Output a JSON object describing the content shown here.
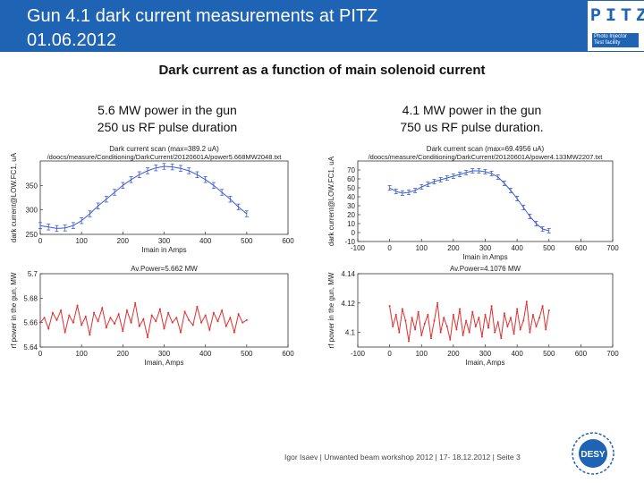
{
  "header": {
    "title": "Gun 4.1 dark current measurements at PITZ\n01.06.2012",
    "logo_text": "PITZ",
    "logo_sub": "Photo Injector Test facility"
  },
  "subtitle": "Dark current as a function of main solenoid current",
  "captions": {
    "left": "5.6 MW power in the gun\n250 us RF pulse duration",
    "right": "4.1 MW power in the gun\n750 us RF pulse duration."
  },
  "footer": "Igor Isaev | Unwanted beam workshop 2012 | 17- 18.12.2012 | Seite 3",
  "desy_logo": "DESY",
  "colors": {
    "header": "#1e63b4",
    "dark_current": "#3b5bd6",
    "rf_power": "#e03030"
  },
  "chart_data": [
    {
      "type": "line",
      "title": "Dark current scan (max=389.2 uA)",
      "subtitle": "/doocs/measure/Conditioning/DarkCurrent/20120601A/power5.668MW2048.txt",
      "xlabel": "Imain in Amps",
      "ylabel": "dark current@LOW.FC1, uA",
      "xlim": [
        0,
        600
      ],
      "ylim": [
        250,
        400
      ],
      "xticks": [
        0,
        100,
        200,
        300,
        400,
        500,
        600
      ],
      "yticks": [
        250,
        300,
        350
      ],
      "error_bars": true,
      "series": [
        {
          "x": [
            0,
            20,
            40,
            60,
            80,
            100,
            120,
            140,
            160,
            180,
            200,
            220,
            240,
            260,
            280,
            300,
            320,
            340,
            360,
            380,
            400,
            420,
            440,
            460,
            480,
            500
          ],
          "y": [
            268,
            265,
            262,
            263,
            268,
            278,
            292,
            308,
            322,
            336,
            350,
            362,
            372,
            380,
            386,
            389,
            388,
            385,
            380,
            372,
            362,
            350,
            336,
            322,
            306,
            292
          ]
        }
      ]
    },
    {
      "type": "line",
      "title": "Av.Power=5.662 MW",
      "xlabel": "Imain, Amps",
      "ylabel": "rf power in the gun, MW",
      "xlim": [
        0,
        600
      ],
      "ylim": [
        5.64,
        5.7
      ],
      "xticks": [
        0,
        100,
        200,
        300,
        400,
        500,
        600
      ],
      "yticks": [
        5.64,
        5.66,
        5.68,
        5.7
      ],
      "series": [
        {
          "x": [
            0,
            10,
            20,
            30,
            40,
            50,
            60,
            70,
            80,
            90,
            100,
            110,
            120,
            130,
            140,
            150,
            160,
            170,
            180,
            190,
            200,
            210,
            220,
            230,
            240,
            250,
            260,
            270,
            280,
            290,
            300,
            310,
            320,
            330,
            340,
            350,
            360,
            370,
            380,
            390,
            400,
            410,
            420,
            430,
            440,
            450,
            460,
            470,
            480,
            490,
            500
          ],
          "y": [
            5.66,
            5.664,
            5.655,
            5.668,
            5.662,
            5.67,
            5.652,
            5.666,
            5.66,
            5.674,
            5.658,
            5.665,
            5.65,
            5.668,
            5.661,
            5.672,
            5.656,
            5.664,
            5.659,
            5.667,
            5.653,
            5.67,
            5.66,
            5.676,
            5.657,
            5.663,
            5.648,
            5.666,
            5.661,
            5.671,
            5.655,
            5.668,
            5.66,
            5.664,
            5.652,
            5.669,
            5.662,
            5.658,
            5.673,
            5.66,
            5.666,
            5.654,
            5.668,
            5.661,
            5.67,
            5.657,
            5.664,
            5.652,
            5.667,
            5.66,
            5.662
          ]
        }
      ]
    },
    {
      "type": "line",
      "title": "Dark current scan (max=69.4956 uA)",
      "subtitle": "/doocs/measure/Conditioning/DarkCurrent/20120601A/power4.133MW2207.txt",
      "xlabel": "Imain in Amps",
      "ylabel": "dark current@LOW.FC1, uA",
      "xlim": [
        -100,
        700
      ],
      "ylim": [
        -10,
        80
      ],
      "xticks": [
        -100,
        0,
        100,
        200,
        300,
        400,
        500,
        600,
        700
      ],
      "yticks": [
        -10,
        0,
        10,
        20,
        30,
        40,
        50,
        60,
        70
      ],
      "error_bars": true,
      "series": [
        {
          "x": [
            0,
            20,
            40,
            60,
            80,
            100,
            120,
            140,
            160,
            180,
            200,
            220,
            240,
            260,
            280,
            300,
            320,
            340,
            360,
            380,
            400,
            420,
            440,
            460,
            480,
            500
          ],
          "y": [
            50,
            46,
            44,
            45,
            47,
            51,
            54,
            57,
            59,
            61,
            63,
            65,
            67,
            69,
            69,
            68,
            66,
            62,
            55,
            47,
            38,
            28,
            18,
            10,
            4,
            2
          ]
        }
      ]
    },
    {
      "type": "line",
      "title": "Av.Power=4.1076 MW",
      "xlabel": "Imain, Amps",
      "ylabel": "rf power in the gun, MW",
      "xlim": [
        -100,
        700
      ],
      "ylim": [
        4.09,
        4.14
      ],
      "xticks": [
        -100,
        0,
        100,
        200,
        300,
        400,
        500,
        600,
        700
      ],
      "yticks": [
        4.1,
        4.12,
        4.14
      ],
      "series": [
        {
          "x": [
            0,
            10,
            20,
            30,
            40,
            50,
            60,
            70,
            80,
            90,
            100,
            110,
            120,
            130,
            140,
            150,
            160,
            170,
            180,
            190,
            200,
            210,
            220,
            230,
            240,
            250,
            260,
            270,
            280,
            290,
            300,
            310,
            320,
            330,
            340,
            350,
            360,
            370,
            380,
            390,
            400,
            410,
            420,
            430,
            440,
            450,
            460,
            470,
            480,
            490,
            500
          ],
          "y": [
            4.118,
            4.104,
            4.112,
            4.1,
            4.116,
            4.108,
            4.094,
            4.11,
            4.102,
            4.114,
            4.098,
            4.106,
            4.112,
            4.096,
            4.108,
            4.12,
            4.1,
            4.11,
            4.104,
            4.095,
            4.112,
            4.102,
            4.116,
            4.098,
            4.108,
            4.1,
            4.114,
            4.104,
            4.11,
            4.097,
            4.112,
            4.103,
            4.118,
            4.1,
            4.107,
            4.096,
            4.113,
            4.104,
            4.11,
            4.099,
            4.116,
            4.102,
            4.108,
            4.121,
            4.1,
            4.112,
            4.104,
            4.11,
            4.118,
            4.102,
            4.115
          ]
        }
      ]
    }
  ]
}
